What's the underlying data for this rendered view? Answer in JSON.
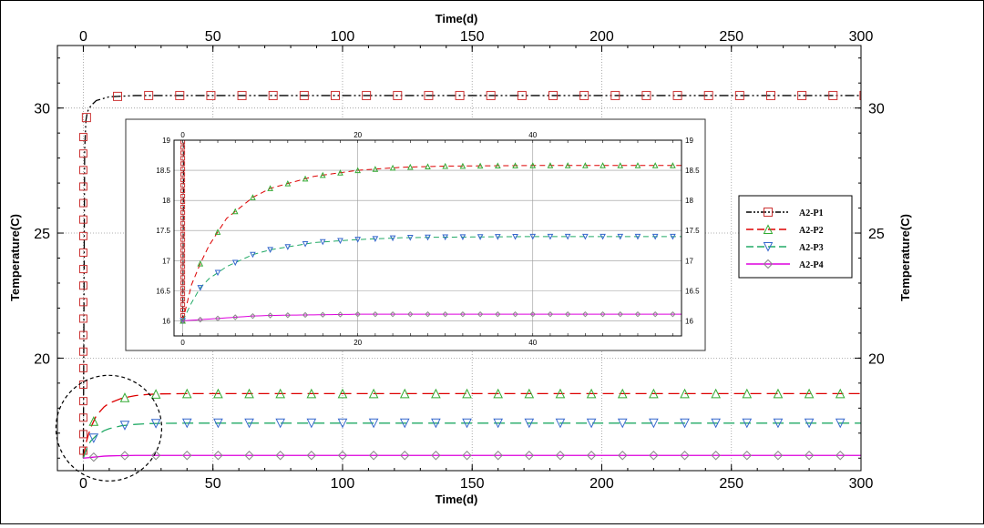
{
  "chart_data": {
    "type": "line",
    "xlabel": "Time(d)",
    "ylabel": "Temperature(C)",
    "xlim": [
      -10,
      300
    ],
    "ylim": [
      15.5,
      32.5
    ],
    "x_ticks": [
      0,
      50,
      100,
      150,
      200,
      250,
      300
    ],
    "y_ticks": [
      20,
      25,
      30
    ],
    "x_tick_labels": [
      "0",
      "50",
      "100",
      "150",
      "200",
      "250",
      "300"
    ],
    "y_tick_labels": [
      "20",
      "25",
      "30"
    ],
    "grid": true,
    "legend_position": "right",
    "series": [
      {
        "name": "A2-P1",
        "color": "#000000",
        "line_style": "dash-dot-dot",
        "marker": "square",
        "marker_color": "#cc3333",
        "x": [
          0,
          0.5,
          1,
          1.5,
          2,
          3,
          5,
          10,
          20,
          30,
          50,
          100,
          150,
          200,
          250,
          300
        ],
        "y": [
          16,
          28.3,
          29.5,
          29.8,
          29.95,
          30.1,
          30.3,
          30.45,
          30.5,
          30.5,
          30.5,
          30.5,
          30.5,
          30.5,
          30.5,
          30.5
        ]
      },
      {
        "name": "A2-P2",
        "color": "#dd0000",
        "line_style": "dashed",
        "marker": "triangle-up",
        "marker_color": "#33aa33",
        "x": [
          0,
          1,
          2,
          3,
          5,
          8,
          10,
          15,
          20,
          25,
          30,
          40,
          50,
          100,
          150,
          200,
          250,
          300
        ],
        "y": [
          16,
          16.6,
          16.95,
          17.25,
          17.7,
          18.05,
          18.2,
          18.4,
          18.5,
          18.55,
          18.57,
          18.58,
          18.58,
          18.58,
          18.58,
          18.58,
          18.58,
          18.58
        ]
      },
      {
        "name": "A2-P3",
        "color": "#22aa66",
        "line_style": "dashed",
        "marker": "triangle-down",
        "marker_color": "#3366cc",
        "x": [
          0,
          1,
          2,
          3,
          5,
          8,
          10,
          15,
          20,
          25,
          30,
          40,
          50,
          100,
          150,
          200,
          250,
          300
        ],
        "y": [
          16,
          16.3,
          16.55,
          16.7,
          16.9,
          17.1,
          17.18,
          17.3,
          17.35,
          17.38,
          17.39,
          17.4,
          17.4,
          17.4,
          17.4,
          17.4,
          17.4,
          17.4
        ]
      },
      {
        "name": "A2-P4",
        "color": "#dd00dd",
        "line_style": "solid",
        "marker": "diamond",
        "marker_color": "#888888",
        "x": [
          0,
          1,
          2,
          3,
          5,
          8,
          10,
          15,
          20,
          25,
          30,
          40,
          50,
          100,
          150,
          200,
          250,
          300
        ],
        "y": [
          16,
          16.01,
          16.02,
          16.03,
          16.05,
          16.08,
          16.09,
          16.1,
          16.11,
          16.11,
          16.11,
          16.11,
          16.11,
          16.11,
          16.11,
          16.11,
          16.11,
          16.11
        ]
      }
    ],
    "inset": {
      "xlim": [
        -1,
        57
      ],
      "ylim": [
        15.75,
        19
      ],
      "x_ticks": [
        0,
        20,
        40
      ],
      "y_ticks": [
        16,
        16.5,
        17,
        17.5,
        18,
        18.5,
        19
      ],
      "x_tick_labels": [
        "0",
        "20",
        "40"
      ],
      "y_tick_labels": [
        "16",
        "16.5",
        "17",
        "17.5",
        "18",
        "18.5",
        "19"
      ]
    },
    "annotation": "dashed circle highlighting the early-time region near x=0, y=17"
  }
}
